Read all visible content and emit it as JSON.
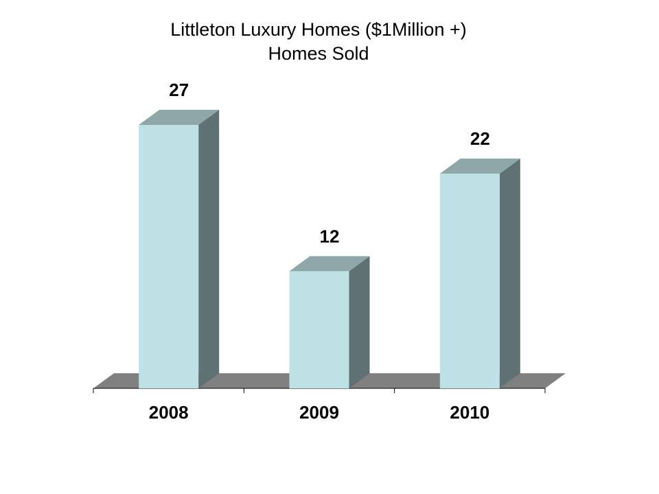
{
  "chart_data": {
    "type": "bar",
    "title": "Littleton Luxury Homes ($1Million +)",
    "subtitle": "Homes Sold",
    "categories": [
      "2008",
      "2009",
      "2010"
    ],
    "values": [
      27,
      12,
      22
    ],
    "data_labels": [
      "27",
      "12",
      "22"
    ],
    "ylim": [
      0,
      27
    ],
    "grid": false,
    "legend": "none",
    "style": "3d-column"
  },
  "colors": {
    "bar_front": "#bde1e4",
    "bar_top": "#8ea7a9",
    "bar_side": "#5f7172",
    "floor": "#808080",
    "axis": "#000000"
  }
}
